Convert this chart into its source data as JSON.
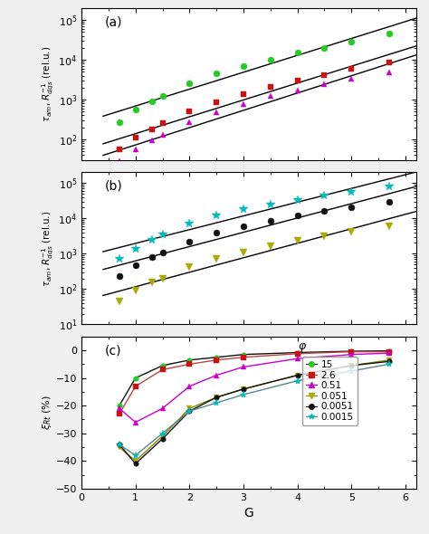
{
  "panel_a": {
    "label": "(a)",
    "ylim": [
      30,
      200000
    ],
    "series": [
      {
        "phi": "15",
        "color": "#22cc22",
        "line_color": "#111111",
        "marker": "o",
        "markersize": 5,
        "x": [
          0.7,
          1.0,
          1.3,
          1.5,
          2.0,
          2.5,
          3.0,
          3.5,
          4.0,
          4.5,
          5.0,
          5.7
        ],
        "y": [
          270,
          550,
          900,
          1200,
          2500,
          4500,
          7000,
          10000,
          15000,
          20000,
          28000,
          45000
        ],
        "slope": 1.55,
        "intercept_log": 1.9
      },
      {
        "phi": "2.6",
        "color": "#cc1111",
        "line_color": "#cc1111",
        "marker": "s",
        "markersize": 5,
        "x": [
          0.7,
          1.0,
          1.3,
          1.5,
          2.0,
          2.5,
          3.0,
          3.5,
          4.0,
          4.5,
          5.0,
          5.7
        ],
        "y": [
          55,
          110,
          180,
          250,
          500,
          850,
          1400,
          2100,
          3000,
          4200,
          5800,
          8500
        ],
        "slope": 1.55,
        "intercept_log": 1.2
      },
      {
        "phi": "0.51",
        "color": "#cc00cc",
        "line_color": "#cc00cc",
        "marker": "^",
        "markersize": 5,
        "x": [
          0.7,
          1.0,
          1.3,
          1.5,
          2.0,
          2.5,
          3.0,
          3.5,
          4.0,
          4.5,
          5.0,
          5.7
        ],
        "y": [
          28,
          55,
          95,
          130,
          270,
          480,
          780,
          1200,
          1700,
          2400,
          3300,
          4800
        ],
        "slope": 1.55,
        "intercept_log": 0.85
      }
    ]
  },
  "panel_b": {
    "label": "(b)",
    "ylim": [
      10,
      200000
    ],
    "series": [
      {
        "phi": "0.0015",
        "color": "#00bbbb",
        "line_color": "#111111",
        "marker": "*",
        "markersize": 7,
        "x": [
          0.7,
          1.0,
          1.3,
          1.5,
          2.0,
          2.5,
          3.0,
          3.5,
          4.0,
          4.5,
          5.0,
          5.7
        ],
        "y": [
          700,
          1400,
          2500,
          3500,
          7000,
          12000,
          18000,
          25000,
          33000,
          43000,
          55000,
          78000
        ],
        "slope": 1.55,
        "intercept_log": 2.5
      },
      {
        "phi": "0.0051",
        "color": "#111111",
        "line_color": "#111111",
        "marker": "o",
        "markersize": 5,
        "x": [
          0.7,
          1.0,
          1.3,
          1.5,
          2.0,
          2.5,
          3.0,
          3.5,
          4.0,
          4.5,
          5.0,
          5.7
        ],
        "y": [
          230,
          480,
          820,
          1100,
          2200,
          3900,
          6000,
          8500,
          12000,
          16000,
          21000,
          30000
        ],
        "slope": 1.55,
        "intercept_log": 2.0
      },
      {
        "phi": "0.051",
        "color": "#aaaa00",
        "line_color": "#111111",
        "marker": "v",
        "markersize": 6,
        "x": [
          0.7,
          1.0,
          1.3,
          1.5,
          2.0,
          2.5,
          3.0,
          3.5,
          4.0,
          4.5,
          5.0,
          5.7
        ],
        "y": [
          45,
          90,
          150,
          200,
          420,
          720,
          1100,
          1600,
          2300,
          3100,
          4200,
          6000
        ],
        "slope": 1.55,
        "intercept_log": 1.2
      }
    ]
  },
  "panel_c": {
    "label": "(c)",
    "ylim": [
      -50,
      5
    ],
    "xlabel": "G",
    "series": [
      {
        "phi": "15",
        "color": "#22cc22",
        "marker": "o",
        "markersize": 4,
        "line_color": "#111111",
        "x": [
          0.7,
          1.0,
          1.5,
          2.0,
          2.5,
          3.0,
          4.0,
          5.0,
          5.7
        ],
        "y": [
          -20,
          -10,
          -5.5,
          -3.5,
          -2.5,
          -1.5,
          -0.8,
          -0.3,
          -0.2
        ]
      },
      {
        "phi": "2.6",
        "color": "#cc1111",
        "marker": "s",
        "markersize": 4,
        "line_color": "#bb4444",
        "x": [
          0.7,
          1.0,
          1.5,
          2.0,
          2.5,
          3.0,
          4.0,
          5.0,
          5.7
        ],
        "y": [
          -23,
          -13,
          -7,
          -5,
          -3.5,
          -2.5,
          -1.2,
          -0.5,
          -0.5
        ]
      },
      {
        "phi": "0.51",
        "color": "#cc00cc",
        "marker": "^",
        "markersize": 4,
        "line_color": "#cc00cc",
        "x": [
          0.7,
          1.0,
          1.5,
          2.0,
          2.5,
          3.0,
          4.0,
          5.0,
          5.7
        ],
        "y": [
          -21,
          -26,
          -21,
          -13,
          -9,
          -6,
          -3,
          -1.5,
          -1
        ]
      },
      {
        "phi": "0.051",
        "color": "#aaaa00",
        "marker": "v",
        "markersize": 5,
        "line_color": "#888800",
        "x": [
          0.7,
          1.0,
          1.5,
          2.0,
          2.5,
          3.0,
          4.0,
          5.0,
          5.7
        ],
        "y": [
          -35,
          -40,
          -31,
          -21,
          -17,
          -14,
          -9,
          -5.5,
          -3.5
        ]
      },
      {
        "phi": "0.0051",
        "color": "#111111",
        "marker": "o",
        "markersize": 4,
        "line_color": "#111111",
        "x": [
          0.7,
          1.0,
          1.5,
          2.0,
          2.5,
          3.0,
          4.0,
          5.0,
          5.7
        ],
        "y": [
          -34,
          -41,
          -32,
          -22,
          -17,
          -14,
          -9,
          -5.5,
          -4
        ]
      },
      {
        "phi": "0.0015",
        "color": "#00bbbb",
        "marker": "*",
        "markersize": 6,
        "line_color": "#558888",
        "x": [
          0.7,
          1.0,
          1.5,
          2.0,
          2.5,
          3.0,
          4.0,
          5.0,
          5.7
        ],
        "y": [
          -34,
          -38,
          -30,
          -22,
          -19,
          -16,
          -11,
          -7.5,
          -5
        ]
      }
    ],
    "legend_entries": [
      "15",
      "2.6",
      "0.51",
      "0.051",
      "0.0051",
      "0.0015"
    ]
  },
  "bg_color": "#f0f0f0",
  "panel_bg": "#ffffff",
  "xticks": [
    0,
    1,
    2,
    3,
    4,
    5,
    6
  ],
  "xlim": [
    0.4,
    6.2
  ]
}
